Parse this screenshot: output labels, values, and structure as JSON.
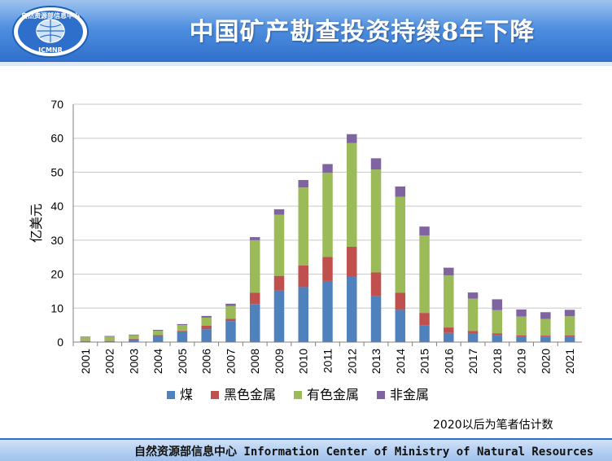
{
  "header": {
    "title": "中国矿产勘查投资持续8年下降",
    "logo_text_top": "自然资源部信息中心",
    "logo_text_bottom": "ICMNR"
  },
  "note": "2020以后为笔者估计数",
  "footer": {
    "text": "自然资源部信息中心  Information Center of Ministry of Natural Resources"
  },
  "colors": {
    "coal": "#4f81bd",
    "ferrous": "#c0504d",
    "nonferrous": "#9bbb59",
    "nonmetal": "#8064a2"
  },
  "chart_data": {
    "type": "bar",
    "stacked": true,
    "ylabel": "亿美元",
    "ylim": [
      0,
      70
    ],
    "yticks": [
      0,
      10,
      20,
      30,
      40,
      50,
      60,
      70
    ],
    "categories": [
      "2001",
      "2002",
      "2003",
      "2004",
      "2005",
      "2006",
      "2007",
      "2008",
      "2009",
      "2010",
      "2011",
      "2012",
      "2013",
      "2014",
      "2015",
      "2016",
      "2017",
      "2018",
      "2019",
      "2020",
      "2021"
    ],
    "series": [
      {
        "name": "煤",
        "color": "#4f81bd",
        "values": [
          0.3,
          0.3,
          0.8,
          1.8,
          3.0,
          3.8,
          6.2,
          11.2,
          15.2,
          16.2,
          18.0,
          19.3,
          13.5,
          9.5,
          5.0,
          2.7,
          2.5,
          2.0,
          1.5,
          1.5,
          1.5
        ]
      },
      {
        "name": "黑色金属",
        "color": "#c0504d",
        "values": [
          0.1,
          0.1,
          0.2,
          0.3,
          0.3,
          1.0,
          0.7,
          3.3,
          4.3,
          6.4,
          7.1,
          8.8,
          7.0,
          5.0,
          3.6,
          1.6,
          0.8,
          0.6,
          0.5,
          0.4,
          0.5
        ]
      },
      {
        "name": "有色金属",
        "color": "#9bbb59",
        "values": [
          1.0,
          1.2,
          1.0,
          1.2,
          1.7,
          2.4,
          3.7,
          15.5,
          18.0,
          22.9,
          24.7,
          30.5,
          30.3,
          28.3,
          22.8,
          15.3,
          9.5,
          6.8,
          5.5,
          4.9,
          5.6
        ]
      },
      {
        "name": "非金属",
        "color": "#8064a2",
        "values": [
          0.2,
          0.2,
          0.2,
          0.3,
          0.3,
          0.5,
          0.7,
          0.9,
          1.6,
          2.2,
          2.6,
          2.6,
          3.3,
          3.0,
          2.6,
          2.3,
          1.8,
          3.2,
          2.1,
          2.0,
          1.9
        ]
      }
    ],
    "legend_position": "bottom"
  }
}
